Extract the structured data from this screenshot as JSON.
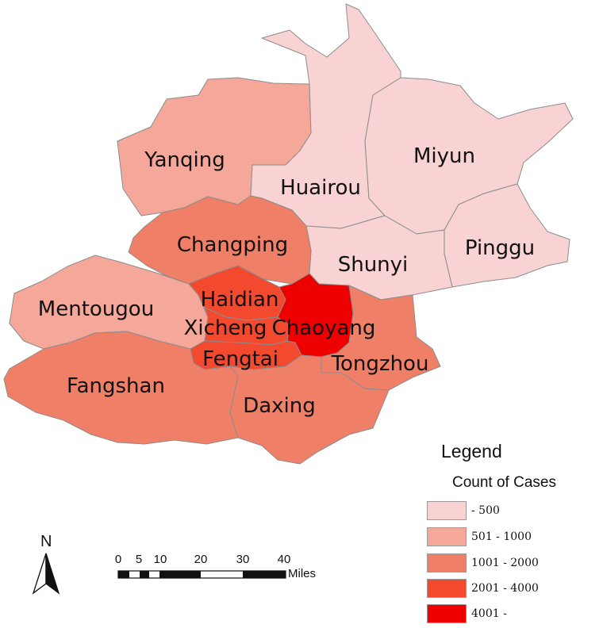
{
  "legend": {
    "title": "Legend",
    "subtitle": "Count of Cases",
    "classes": [
      {
        "label": "- 500",
        "color": "#f9d3d3"
      },
      {
        "label": "501 - 1000",
        "color": "#f5a79a"
      },
      {
        "label": "1001 - 2000",
        "color": "#f07f67"
      },
      {
        "label": "2001 - 4000",
        "color": "#f2492f"
      },
      {
        "label": "4001 -",
        "color": "#ee0000"
      }
    ]
  },
  "districts": [
    {
      "name": "Yanqing",
      "cases_class": 1
    },
    {
      "name": "Huairou",
      "cases_class": 0
    },
    {
      "name": "Miyun",
      "cases_class": 0
    },
    {
      "name": "Pinggu",
      "cases_class": 0
    },
    {
      "name": "Shunyi",
      "cases_class": 0
    },
    {
      "name": "Changping",
      "cases_class": 2
    },
    {
      "name": "Mentougou",
      "cases_class": 1
    },
    {
      "name": "Haidian",
      "cases_class": 3
    },
    {
      "name": "Xicheng",
      "cases_class": 3
    },
    {
      "name": "Chaoyang",
      "cases_class": 4
    },
    {
      "name": "Fengtai",
      "cases_class": 3
    },
    {
      "name": "Tongzhou",
      "cases_class": 2
    },
    {
      "name": "Fangshan",
      "cases_class": 2
    },
    {
      "name": "Daxing",
      "cases_class": 2
    }
  ],
  "north_arrow": {
    "label": "N",
    "icon": "north-arrow-icon"
  },
  "scale_bar": {
    "ticks": [
      "0",
      "5",
      "10",
      "20",
      "30",
      "40"
    ],
    "unit": "Miles"
  }
}
